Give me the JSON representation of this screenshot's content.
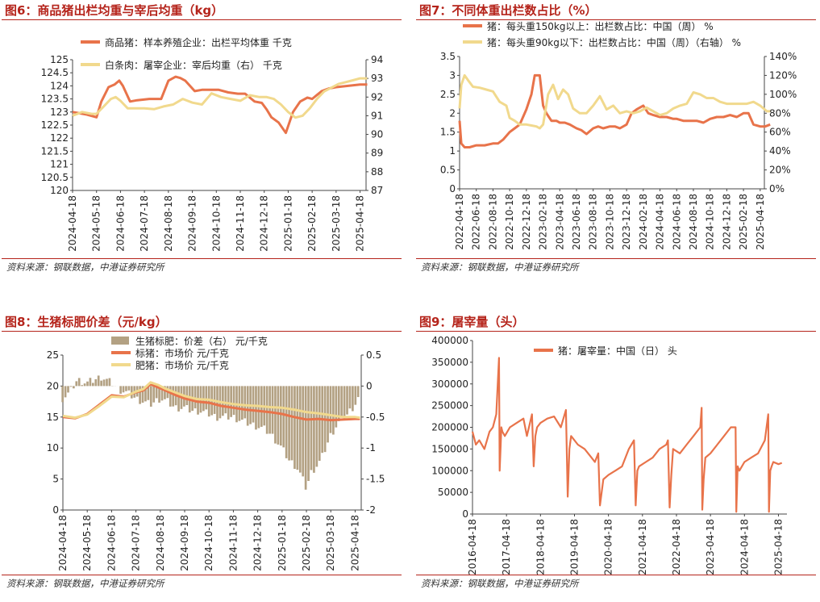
{
  "source_text": "资料来源：钢联数据，中港证券研究所",
  "chart_data": [
    {
      "id": "fig6",
      "type": "line",
      "title": "图6：商品猪出栏均重与宰后均重（kg）",
      "x_labels": [
        "2024-04-18",
        "2024-05-18",
        "2024-06-18",
        "2024-07-18",
        "2024-08-18",
        "2024-09-18",
        "2024-10-18",
        "2024-11-18",
        "2024-12-18",
        "2025-01-18",
        "2025-02-18",
        "2025-03-18",
        "2025-04-18"
      ],
      "ylim": [
        120,
        125
      ],
      "y_ticks": [
        "120",
        "120.5",
        "121",
        "121.5",
        "122",
        "122.5",
        "123",
        "123.5",
        "124",
        "124.5",
        "125"
      ],
      "y2lim": [
        87,
        94
      ],
      "y2_ticks": [
        "87",
        "88",
        "89",
        "90",
        "91",
        "92",
        "93",
        "94"
      ],
      "legend": [
        "商品猪：样本养殖企业：出栏平均体重 千克",
        "白条肉：屠宰企业：宰后均重（右） 千克"
      ],
      "colors": [
        "#e8734a",
        "#f1d98d"
      ],
      "series": [
        {
          "name": "商品猪：样本养殖企业：出栏平均体重 千克",
          "axis": "left",
          "x": [
            0,
            0.3,
            0.6,
            1.0,
            1.2,
            1.5,
            1.75,
            1.95,
            2.1,
            2.4,
            2.7,
            3.2,
            3.7,
            4.0,
            4.3,
            4.5,
            4.7,
            5.1,
            5.4,
            5.7,
            6.1,
            6.5,
            6.9,
            7.2,
            7.6,
            7.9,
            8.1,
            8.3,
            8.6,
            8.9,
            9.2,
            9.5,
            9.8,
            10.0,
            10.2,
            10.4,
            10.7,
            11.0,
            11.5,
            12.0,
            12.3
          ],
          "y": [
            123.0,
            122.95,
            122.9,
            122.8,
            123.4,
            123.95,
            124.05,
            124.2,
            124.0,
            123.4,
            123.45,
            123.5,
            123.5,
            124.2,
            124.35,
            124.3,
            124.2,
            123.8,
            123.85,
            123.85,
            123.85,
            123.75,
            123.7,
            123.7,
            123.4,
            123.35,
            123.1,
            122.8,
            122.6,
            122.2,
            123.0,
            123.4,
            123.55,
            123.5,
            123.65,
            123.8,
            123.9,
            123.95,
            124.0,
            124.05,
            124.05
          ]
        },
        {
          "name": "白条肉：屠宰企业：宰后均重（右） 千克",
          "axis": "right",
          "x": [
            0,
            0.4,
            0.8,
            1.0,
            1.3,
            1.6,
            1.8,
            2.0,
            2.3,
            2.6,
            3.0,
            3.4,
            3.8,
            4.2,
            4.6,
            5.0,
            5.4,
            5.8,
            6.2,
            6.6,
            7.0,
            7.4,
            7.8,
            8.1,
            8.4,
            8.7,
            9.0,
            9.3,
            9.6,
            9.9,
            10.2,
            10.5,
            10.8,
            11.1,
            11.4,
            11.7,
            12.0,
            12.3
          ],
          "y": [
            91.0,
            91.2,
            91.1,
            91.1,
            91.5,
            91.9,
            92.0,
            91.8,
            91.4,
            91.4,
            91.4,
            91.35,
            91.5,
            91.6,
            91.9,
            91.7,
            91.6,
            92.2,
            92.0,
            91.9,
            91.8,
            92.1,
            92.0,
            92.0,
            91.9,
            91.6,
            91.2,
            90.9,
            91.0,
            91.4,
            91.9,
            92.3,
            92.5,
            92.7,
            92.8,
            92.9,
            93.0,
            93.0
          ]
        }
      ]
    },
    {
      "id": "fig7",
      "type": "line",
      "title": "图7：不同体重出栏数占比（%）",
      "x_labels": [
        "2022-04-18",
        "2022-06-18",
        "2022-08-18",
        "2022-10-18",
        "2022-12-18",
        "2023-02-18",
        "2023-04-18",
        "2023-06-18",
        "2023-08-18",
        "2023-10-18",
        "2023-12-18",
        "2024-02-18",
        "2024-04-18",
        "2024-06-18",
        "2024-08-18",
        "2024-10-18",
        "2024-12-18",
        "2025-02-18",
        "2025-04-18"
      ],
      "ylim": [
        0,
        3.5
      ],
      "y_ticks": [
        "0",
        "0.5",
        "1",
        "1.5",
        "2",
        "2.5",
        "3",
        "3.5"
      ],
      "y2lim": [
        0,
        140
      ],
      "y2_ticks": [
        "0%",
        "20%",
        "40%",
        "60%",
        "80%",
        "100%",
        "120%",
        "140%"
      ],
      "legend": [
        "猪：每头重150kg以上：出栏数占比：中国（周） %",
        "猪：每头重90kg以下：出栏数占比：中国（周）（右轴） %"
      ],
      "colors": [
        "#e8734a",
        "#f1d98d"
      ],
      "series": [
        {
          "name": "猪：每头重150kg以上：出栏数占比：中国（周） %",
          "axis": "left",
          "x": [
            0,
            0.1,
            0.3,
            0.6,
            1.0,
            1.5,
            2.0,
            2.3,
            2.6,
            3.0,
            3.3,
            3.6,
            4.0,
            4.3,
            4.5,
            4.8,
            5.0,
            5.2,
            5.5,
            5.8,
            6.0,
            6.3,
            6.6,
            7.0,
            7.3,
            7.6,
            8.0,
            8.3,
            8.6,
            9.0,
            9.3,
            9.6,
            10.0,
            10.3,
            10.6,
            11.0,
            11.3,
            11.6,
            12.0,
            12.4,
            12.8,
            13.0,
            13.4,
            13.8,
            14.2,
            14.6,
            15.0,
            15.4,
            15.8,
            16.2,
            16.6,
            17.0,
            17.3,
            17.6,
            18.0,
            18.3,
            18.6
          ],
          "y": [
            1.8,
            1.2,
            1.1,
            1.1,
            1.15,
            1.15,
            1.2,
            1.2,
            1.3,
            1.5,
            1.6,
            1.7,
            2.1,
            2.5,
            3.0,
            3.0,
            2.2,
            2.0,
            1.8,
            1.8,
            1.75,
            1.75,
            1.7,
            1.6,
            1.55,
            1.45,
            1.6,
            1.65,
            1.6,
            1.65,
            1.65,
            1.6,
            1.7,
            2.0,
            2.1,
            2.2,
            2.0,
            1.95,
            1.9,
            1.9,
            1.85,
            1.85,
            1.8,
            1.8,
            1.8,
            1.75,
            1.85,
            1.9,
            1.9,
            1.95,
            1.9,
            2.0,
            2.0,
            1.7,
            1.65,
            1.65,
            1.7
          ]
        },
        {
          "name": "猪：每头重90kg以下：出栏数占比：中国（周）（右轴） %",
          "axis": "right",
          "x": [
            0,
            0.1,
            0.3,
            0.5,
            0.8,
            1.2,
            1.6,
            2.0,
            2.4,
            2.8,
            3.0,
            3.3,
            3.6,
            4.0,
            4.3,
            4.6,
            4.8,
            5.0,
            5.3,
            5.6,
            5.9,
            6.2,
            6.5,
            6.8,
            7.2,
            7.6,
            8.0,
            8.4,
            8.8,
            9.2,
            9.6,
            10.0,
            10.4,
            10.8,
            11.2,
            11.6,
            12.0,
            12.4,
            12.8,
            13.2,
            13.6,
            14.0,
            14.4,
            14.8,
            15.2,
            15.6,
            16.0,
            16.4,
            16.8,
            17.2,
            17.6,
            18.0,
            18.4,
            18.6
          ],
          "y": [
            85,
            110,
            120,
            115,
            108,
            107,
            105,
            103,
            92,
            88,
            75,
            72,
            68,
            68,
            67,
            66,
            64,
            68,
            100,
            110,
            95,
            105,
            100,
            85,
            80,
            80,
            88,
            98,
            84,
            88,
            80,
            82,
            80,
            82,
            86,
            82,
            78,
            80,
            85,
            88,
            90,
            102,
            100,
            96,
            96,
            92,
            90,
            90,
            90,
            90,
            92,
            88,
            82,
            82
          ]
        }
      ]
    },
    {
      "id": "fig8",
      "type": "bar+line",
      "title": "图8：生猪标肥价差（元/kg）",
      "x_labels": [
        "2024-04-18",
        "2024-05-18",
        "2024-06-18",
        "2024-07-18",
        "2024-08-18",
        "2024-09-18",
        "2024-10-18",
        "2024-11-18",
        "2024-12-18",
        "2025-01-18",
        "2025-02-18",
        "2025-03-18",
        "2025-04-18"
      ],
      "ylim": [
        0,
        25
      ],
      "y_ticks": [
        "0",
        "5",
        "10",
        "15",
        "20",
        "25"
      ],
      "y2lim": [
        -2,
        0.5
      ],
      "y2_ticks": [
        "-2",
        "-1.5",
        "-1",
        "-0.5",
        "0",
        "0.5"
      ],
      "legend": [
        "生猪标肥：价差（右） 元/千克",
        "标猪：市场价 元/千克",
        "肥猪：市场价 元/千克"
      ],
      "colors": [
        "#b3a183",
        "#e8734a",
        "#f1d98d"
      ],
      "bars": {
        "name": "生猪标肥：价差（右） 元/千克",
        "x": [
          0,
          0.3,
          0.6,
          1.0,
          1.3,
          1.6,
          2.0,
          2.3,
          2.6,
          3.0,
          3.3,
          3.6,
          4.0,
          4.3,
          4.6,
          5.0,
          5.3,
          5.6,
          6.0,
          6.3,
          6.6,
          7.0,
          7.3,
          7.6,
          8.0,
          8.3,
          8.6,
          9.0,
          9.3,
          9.6,
          9.8,
          10.0,
          10.2,
          10.4,
          10.6,
          11.0,
          11.3,
          11.6,
          12.0,
          12.2
        ],
        "y": [
          -0.2,
          -0.1,
          0.1,
          0.05,
          0.1,
          0.15,
          0.05,
          -0.05,
          -0.1,
          -0.2,
          -0.25,
          -0.3,
          -0.2,
          -0.25,
          -0.35,
          -0.35,
          -0.4,
          -0.4,
          -0.45,
          -0.5,
          -0.5,
          -0.5,
          -0.55,
          -0.6,
          -0.65,
          -0.7,
          -0.8,
          -1.0,
          -1.2,
          -1.3,
          -1.45,
          -1.65,
          -1.4,
          -1.3,
          -1.2,
          -0.8,
          -0.6,
          -0.5,
          -0.3,
          -0.15
        ]
      },
      "series": [
        {
          "name": "标猪：市场价 元/千克",
          "axis": "left",
          "x": [
            0,
            0.5,
            1.0,
            1.5,
            2.0,
            2.5,
            3.0,
            3.3,
            3.6,
            3.9,
            4.2,
            4.6,
            5.0,
            5.5,
            6.0,
            6.5,
            7.0,
            7.5,
            8.0,
            8.5,
            9.0,
            9.5,
            10.0,
            10.5,
            11.0,
            11.5,
            12.0,
            12.2
          ],
          "y": [
            15.0,
            14.8,
            15.5,
            17.0,
            18.5,
            18.3,
            19.0,
            19.3,
            20.3,
            19.8,
            19.3,
            18.6,
            18.0,
            17.5,
            17.3,
            16.8,
            16.5,
            16.2,
            16.0,
            15.8,
            15.5,
            15.0,
            14.6,
            14.7,
            14.5,
            14.6,
            14.7,
            14.7
          ]
        },
        {
          "name": "肥猪：市场价 元/千克",
          "axis": "left",
          "x": [
            0,
            0.5,
            1.0,
            1.5,
            2.0,
            2.5,
            3.0,
            3.3,
            3.6,
            3.9,
            4.2,
            4.6,
            5.0,
            5.5,
            6.0,
            6.5,
            7.0,
            7.5,
            8.0,
            8.5,
            9.0,
            9.5,
            10.0,
            10.5,
            11.0,
            11.5,
            12.0,
            12.2
          ],
          "y": [
            15.2,
            14.9,
            15.4,
            16.8,
            18.3,
            18.2,
            19.1,
            19.5,
            20.6,
            20.2,
            19.6,
            19.0,
            18.4,
            17.9,
            17.8,
            17.4,
            17.1,
            16.9,
            16.8,
            16.6,
            16.5,
            16.2,
            15.8,
            15.6,
            15.3,
            15.0,
            15.0,
            14.9
          ]
        }
      ]
    },
    {
      "id": "fig9",
      "type": "line",
      "title": "图9：屠宰量（头）",
      "x_labels": [
        "2016-04-18",
        "2017-04-18",
        "2018-04-18",
        "2019-04-18",
        "2020-04-18",
        "2021-04-18",
        "2022-04-18",
        "2023-04-18",
        "2024-04-18",
        "2025-04-18"
      ],
      "ylim": [
        0,
        400000
      ],
      "y_ticks": [
        "0",
        "50000",
        "100000",
        "150000",
        "200000",
        "250000",
        "300000",
        "350000",
        "400000"
      ],
      "legend": [
        "猪：屠宰量：中国（日） 头"
      ],
      "colors": [
        "#e8734a"
      ],
      "series": [
        {
          "name": "猪：屠宰量：中国（日） 头",
          "axis": "left",
          "x": [
            0,
            0.1,
            0.2,
            0.35,
            0.5,
            0.6,
            0.7,
            0.78,
            0.8,
            0.83,
            0.85,
            0.88,
            0.95,
            1.1,
            1.3,
            1.5,
            1.6,
            1.75,
            1.8,
            1.85,
            1.9,
            2.0,
            2.2,
            2.4,
            2.6,
            2.75,
            2.8,
            2.85,
            2.9,
            3.1,
            3.3,
            3.5,
            3.6,
            3.7,
            3.75,
            3.8,
            3.85,
            4.0,
            4.2,
            4.4,
            4.6,
            4.75,
            4.8,
            4.85,
            4.9,
            5.1,
            5.3,
            5.5,
            5.7,
            5.75,
            5.8,
            5.85,
            5.9,
            6.1,
            6.3,
            6.5,
            6.7,
            6.74,
            6.76,
            6.8,
            6.85,
            7.0,
            7.2,
            7.4,
            7.6,
            7.74,
            7.76,
            7.8,
            7.85,
            8.0,
            8.2,
            8.4,
            8.6,
            8.7,
            8.72,
            8.76,
            8.8,
            8.85,
            9.0,
            9.1
          ],
          "y": [
            190000,
            160000,
            170000,
            150000,
            190000,
            200000,
            230000,
            360000,
            100000,
            160000,
            200000,
            190000,
            180000,
            200000,
            210000,
            220000,
            180000,
            230000,
            110000,
            180000,
            200000,
            210000,
            220000,
            225000,
            200000,
            240000,
            40000,
            150000,
            180000,
            160000,
            150000,
            130000,
            120000,
            140000,
            20000,
            50000,
            80000,
            90000,
            100000,
            110000,
            150000,
            170000,
            20000,
            100000,
            110000,
            120000,
            130000,
            150000,
            160000,
            170000,
            15000,
            90000,
            150000,
            140000,
            160000,
            180000,
            200000,
            245000,
            10000,
            80000,
            130000,
            140000,
            160000,
            180000,
            200000,
            200000,
            5000,
            110000,
            100000,
            120000,
            130000,
            140000,
            170000,
            230000,
            5000,
            100000,
            110000,
            120000,
            115000,
            118000
          ]
        }
      ]
    }
  ]
}
